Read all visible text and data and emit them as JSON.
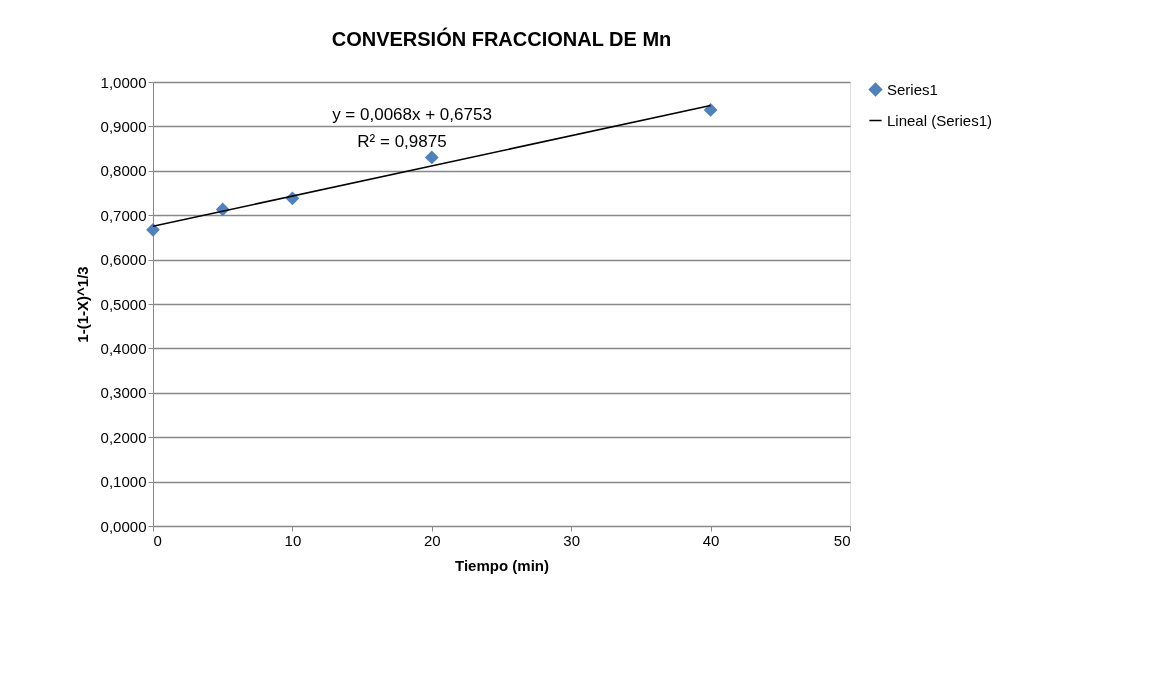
{
  "chart_data": {
    "type": "scatter",
    "title": "CONVERSIÓN FRACCIONAL DE Mn",
    "xlabel": "Tiempo (min)",
    "ylabel": "1-(1-X)^1/3",
    "series": [
      {
        "name": "Series1",
        "color": "#4f81bd",
        "marker": "diamond",
        "x": [
          0,
          5,
          10,
          20,
          40
        ],
        "values": [
          0.667,
          0.713,
          0.738,
          0.83,
          0.937
        ]
      },
      {
        "name": "Lineal (Series1)",
        "type": "line",
        "color": "#000000",
        "line_style": "solid",
        "x": [
          0,
          40
        ],
        "values": [
          0.675,
          0.947
        ]
      }
    ],
    "annotations": [
      "y = 0,0068x + 0,6753",
      "R² = 0,9875"
    ],
    "xlim": [
      0,
      50
    ],
    "xticks": [
      0,
      10,
      20,
      30,
      40,
      50
    ],
    "ylim": [
      0,
      1
    ],
    "yticks": [
      {
        "value": 0,
        "label": "0,0000"
      },
      {
        "value": 0.1,
        "label": "0,1000"
      },
      {
        "value": 0.2,
        "label": "0,2000"
      },
      {
        "value": 0.3,
        "label": "0,3000"
      },
      {
        "value": 0.4,
        "label": "0,4000"
      },
      {
        "value": 0.5,
        "label": "0,5000"
      },
      {
        "value": 0.6,
        "label": "0,6000"
      },
      {
        "value": 0.7,
        "label": "0,7000"
      },
      {
        "value": 0.8,
        "label": "0,8000"
      },
      {
        "value": 0.9,
        "label": "0,9000"
      },
      {
        "value": 1,
        "label": "1,0000"
      }
    ],
    "grid": "y",
    "legend": "right"
  }
}
